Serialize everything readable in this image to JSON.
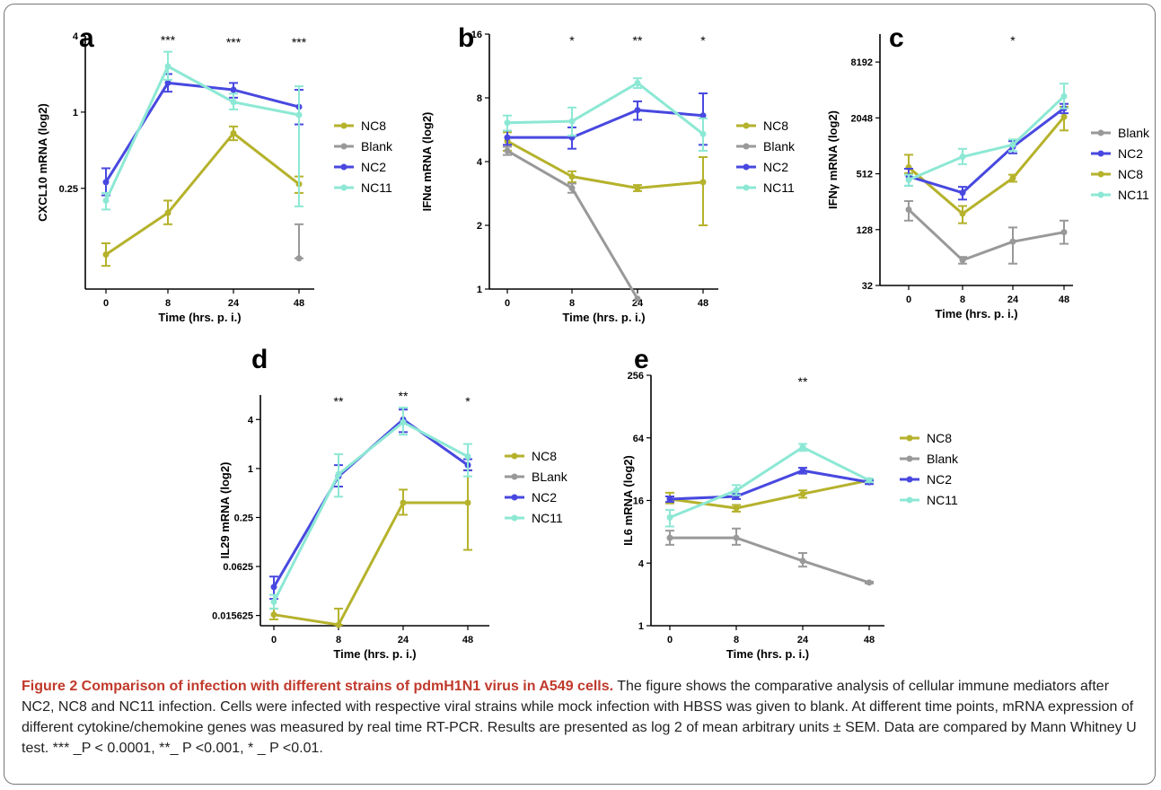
{
  "colors": {
    "NC8": "#b5b22c",
    "Blank": "#999999",
    "NC2": "#4848e0",
    "NC11": "#8ce8d4"
  },
  "chart_data": [
    {
      "type": "line",
      "panel_letter": "a",
      "ylabel": "CXCL10 mRNA (log2)",
      "xlabel": "Time (hrs. p. i.)",
      "y_scale": "log2",
      "ylim": [
        0.04,
        4
      ],
      "y_ticks": [
        {
          "v": 4,
          "label": "4"
        },
        {
          "v": 1,
          "label": "1"
        },
        {
          "v": 0.25,
          "label": "0.25"
        }
      ],
      "categories": [
        "0",
        "8",
        "24",
        "48"
      ],
      "legend": [
        "NC8",
        "Blank",
        "NC2",
        "NC11"
      ],
      "series": [
        {
          "name": "NC8",
          "values": [
            0.075,
            0.16,
            0.68,
            0.27
          ],
          "err": [
            [
              0.061,
              0.092
            ],
            [
              0.13,
              0.2
            ],
            [
              0.6,
              0.77
            ],
            [
              0.23,
              0.31
            ]
          ]
        },
        {
          "name": "Blank",
          "values": [
            null,
            null,
            null,
            0.07
          ],
          "err": [
            null,
            null,
            null,
            [
              0.07,
              0.13
            ]
          ]
        },
        {
          "name": "NC2",
          "values": [
            0.28,
            1.7,
            1.5,
            1.1
          ],
          "err": [
            [
              0.22,
              0.36
            ],
            [
              1.45,
              2.0
            ],
            [
              1.3,
              1.7
            ],
            [
              0.8,
              1.5
            ]
          ]
        },
        {
          "name": "NC11",
          "values": [
            0.2,
            2.3,
            1.2,
            0.95
          ],
          "err": [
            [
              0.17,
              0.23
            ],
            [
              1.8,
              3.0
            ],
            [
              1.05,
              1.4
            ],
            [
              0.18,
              1.6
            ]
          ]
        }
      ],
      "annotations": [
        {
          "x": 1,
          "text": "***"
        },
        {
          "x": 2,
          "text": "***"
        },
        {
          "x": 3,
          "text": "***"
        }
      ]
    },
    {
      "type": "line",
      "panel_letter": "b",
      "ylabel": "IFNα mRNA (log2)",
      "xlabel": "Time (hrs. p. i.)",
      "y_scale": "log2",
      "ylim": [
        1,
        16
      ],
      "y_ticks": [
        {
          "v": 16,
          "label": "16"
        },
        {
          "v": 8,
          "label": "8"
        },
        {
          "v": 4,
          "label": "4"
        },
        {
          "v": 2,
          "label": "2"
        },
        {
          "v": 1,
          "label": "1"
        }
      ],
      "categories": [
        "0",
        "8",
        "24",
        "48"
      ],
      "legend": [
        "NC8",
        "Blank",
        "NC2",
        "NC11"
      ],
      "series": [
        {
          "name": "NC8",
          "values": [
            5.0,
            3.4,
            3.0,
            3.2
          ],
          "err": [
            [
              4.5,
              5.5
            ],
            [
              3.2,
              3.6
            ],
            [
              2.9,
              3.1
            ],
            [
              2.0,
              4.2
            ]
          ]
        },
        {
          "name": "Blank",
          "values": [
            4.5,
            3.0,
            0.9,
            null
          ],
          "err": [
            [
              4.3,
              4.7
            ],
            [
              2.85,
              3.15
            ],
            null,
            null
          ]
        },
        {
          "name": "NC2",
          "values": [
            5.2,
            5.2,
            7.0,
            6.6
          ],
          "err": [
            [
              4.8,
              5.6
            ],
            [
              4.6,
              5.8
            ],
            [
              6.3,
              7.7
            ],
            [
              4.8,
              8.4
            ]
          ]
        },
        {
          "name": "NC11",
          "values": [
            6.1,
            6.2,
            9.4,
            5.4
          ],
          "err": [
            [
              5.6,
              6.6
            ],
            [
              5.3,
              7.2
            ],
            [
              8.9,
              9.9
            ],
            [
              4.5,
              6.4
            ]
          ]
        }
      ],
      "annotations": [
        {
          "x": 1,
          "text": "*"
        },
        {
          "x": 2,
          "text": "**"
        },
        {
          "x": 3,
          "text": "*"
        }
      ]
    },
    {
      "type": "line",
      "panel_letter": "c",
      "ylabel": "IFNγ mRNA (log2)",
      "xlabel": "Time (hrs. p. i.)",
      "y_scale": "log2",
      "ylim": [
        32,
        16384
      ],
      "y_ticks": [
        {
          "v": 8192,
          "label": "8192"
        },
        {
          "v": 2048,
          "label": "2048"
        },
        {
          "v": 512,
          "label": "512"
        },
        {
          "v": 128,
          "label": "128"
        },
        {
          "v": 32,
          "label": "32"
        }
      ],
      "categories": [
        "0",
        "8",
        "24",
        "48"
      ],
      "legend": [
        "Blank",
        "NC2",
        "NC8",
        "NC11"
      ],
      "series": [
        {
          "name": "Blank",
          "values": [
            210,
            60,
            95,
            120
          ],
          "err": [
            [
              160,
              260
            ],
            [
              55,
              65
            ],
            [
              55,
              135
            ],
            [
              90,
              160
            ]
          ]
        },
        {
          "name": "NC8",
          "values": [
            600,
            190,
            460,
            2100
          ],
          "err": [
            [
              520,
              820
            ],
            [
              150,
              230
            ],
            [
              420,
              500
            ],
            [
              1500,
              2700
            ]
          ]
        },
        {
          "name": "NC2",
          "values": [
            480,
            320,
            1000,
            2600
          ],
          "err": [
            [
              380,
              580
            ],
            [
              270,
              370
            ],
            [
              850,
              1150
            ],
            [
              2300,
              2900
            ]
          ]
        },
        {
          "name": "NC11",
          "values": [
            440,
            780,
            1050,
            3500
          ],
          "err": [
            [
              380,
              500
            ],
            [
              650,
              950
            ],
            [
              900,
              1200
            ],
            [
              2600,
              4800
            ]
          ]
        }
      ],
      "annotations": [
        {
          "x": 2,
          "text": "*"
        }
      ]
    },
    {
      "type": "line",
      "panel_letter": "d",
      "ylabel": "IL29 mRNA (log2)",
      "xlabel": "Time (hrs. p. i.)",
      "y_scale": "log2",
      "ylim": [
        0.0117,
        8
      ],
      "y_ticks": [
        {
          "v": 4,
          "label": "4"
        },
        {
          "v": 1,
          "label": "1"
        },
        {
          "v": 0.25,
          "label": "0.25"
        },
        {
          "v": 0.0625,
          "label": "0.0625"
        },
        {
          "v": 0.015625,
          "label": "0.015625"
        }
      ],
      "categories": [
        "0",
        "8",
        "24",
        "48"
      ],
      "legend": [
        "NC8",
        "BLank",
        "NC2",
        "NC11"
      ],
      "series": [
        {
          "name": "NC8",
          "values": [
            0.016,
            0.012,
            0.38,
            0.38
          ],
          "err": [
            [
              0.014,
              0.019
            ],
            [
              0.012,
              0.019
            ],
            [
              0.27,
              0.55
            ],
            [
              0.1,
              0.95
            ]
          ]
        },
        {
          "name": "NC2",
          "values": [
            0.035,
            0.8,
            4.0,
            1.1
          ],
          "err": [
            [
              0.025,
              0.047
            ],
            [
              0.6,
              1.1
            ],
            [
              2.8,
              5.3
            ],
            [
              0.95,
              1.3
            ]
          ]
        },
        {
          "name": "NC11",
          "values": [
            0.023,
            0.85,
            3.7,
            1.4
          ],
          "err": [
            [
              0.019,
              0.028
            ],
            [
              0.45,
              1.5
            ],
            [
              2.6,
              5.6
            ],
            [
              0.8,
              2.0
            ]
          ]
        }
      ],
      "annotations": [
        {
          "x": 1,
          "text": "**"
        },
        {
          "x": 2,
          "text": "**"
        },
        {
          "x": 3,
          "text": "*"
        }
      ]
    },
    {
      "type": "line",
      "panel_letter": "e",
      "ylabel": "IL6 mRNA (log2)",
      "xlabel": "Time (hrs. p. i.)",
      "y_scale": "log2",
      "ylim": [
        1,
        256
      ],
      "y_ticks": [
        {
          "v": 256,
          "label": "256"
        },
        {
          "v": 64,
          "label": "64"
        },
        {
          "v": 16,
          "label": "16"
        },
        {
          "v": 4,
          "label": "4"
        },
        {
          "v": 1,
          "label": "1"
        }
      ],
      "categories": [
        "0",
        "8",
        "24",
        "48"
      ],
      "legend": [
        "NC8",
        "Blank",
        "NC2",
        "NC11"
      ],
      "series": [
        {
          "name": "Blank",
          "values": [
            7.0,
            7.0,
            4.2,
            2.6
          ],
          "err": [
            [
              6.0,
              8.2
            ],
            [
              6.0,
              8.6
            ],
            [
              3.7,
              5.0
            ],
            [
              2.55,
              2.65
            ]
          ]
        },
        {
          "name": "NC8",
          "values": [
            16.5,
            13.5,
            18.5,
            25
          ],
          "err": [
            [
              15,
              19
            ],
            [
              12.5,
              14.5
            ],
            [
              17,
              20
            ],
            [
              24,
              26
            ]
          ]
        },
        {
          "name": "NC2",
          "values": [
            16.5,
            17.5,
            31,
            24
          ],
          "err": [
            [
              15.5,
              17.5
            ],
            [
              16.5,
              18.5
            ],
            [
              29,
              33
            ],
            [
              23,
              25
            ]
          ]
        },
        {
          "name": "NC11",
          "values": [
            11,
            20,
            52,
            25
          ],
          "err": [
            [
              9,
              13
            ],
            [
              18,
              22.5
            ],
            [
              48,
              56
            ],
            [
              24,
              26
            ]
          ]
        }
      ],
      "annotations": [
        {
          "x": 2,
          "text": "**"
        }
      ]
    }
  ],
  "caption": {
    "title": "Figure 2 Comparison of infection with different strains of pdmH1N1 virus in A549 cells.",
    "body": " The figure shows the comparative analysis of cellular immune mediators after NC2, NC8 and NC11 infection. Cells were infected with respective viral strains while mock infection with HBSS was given to blank. At different time points, mRNA expression of different cytokine/chemokine genes was measured by real time RT-PCR. Results are presented as log 2 of mean arbitrary units ± SEM. Data are compared by Mann Whitney U test. *** _P < 0.0001, **_ P <0.001, * _ P <0.01."
  }
}
